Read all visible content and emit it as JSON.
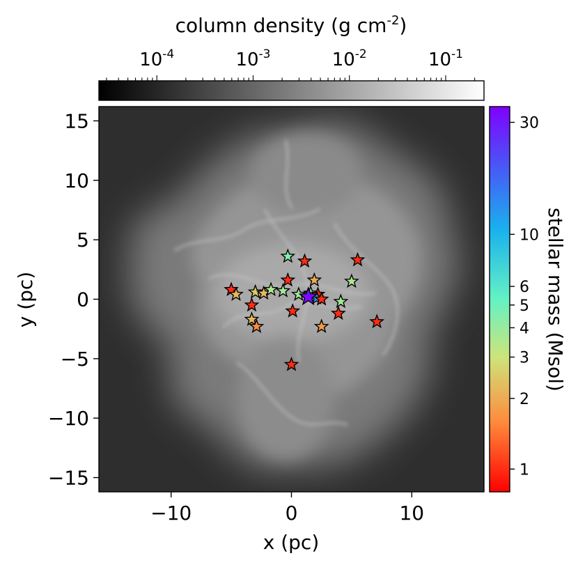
{
  "chart_data": {
    "type": "scatter",
    "xlabel": "x (pc)",
    "ylabel": "y (pc)",
    "xlim": [
      -16,
      16
    ],
    "ylim": [
      -16.2,
      16.2
    ],
    "xticks": [
      {
        "value": -10,
        "label": "−10"
      },
      {
        "value": 0,
        "label": "0"
      },
      {
        "value": 10,
        "label": "10"
      }
    ],
    "yticks": [
      {
        "value": 15,
        "label": "15"
      },
      {
        "value": 10,
        "label": "10"
      },
      {
        "value": 5,
        "label": "5"
      },
      {
        "value": 0,
        "label": "0"
      },
      {
        "value": -5,
        "label": "−5"
      },
      {
        "value": -10,
        "label": "−10"
      },
      {
        "value": -15,
        "label": "−15"
      }
    ],
    "background": {
      "quantity": "column density",
      "colormap": "gray",
      "outer_color": "#2d2d2d"
    },
    "density_colorbar": {
      "label": "column density (g cm",
      "label_sup": "-2",
      "label_end": ")",
      "scale": "log",
      "range": [
        2.5e-05,
        0.25
      ],
      "ticks": [
        {
          "value": 0.0001,
          "base": "10",
          "exp": "-4"
        },
        {
          "value": 0.001,
          "base": "10",
          "exp": "-3"
        },
        {
          "value": 0.01,
          "base": "10",
          "exp": "-2"
        },
        {
          "value": 0.1,
          "base": "10",
          "exp": "-1"
        }
      ]
    },
    "mass_colorbar": {
      "label": "stellar mass (Msol)",
      "scale": "log",
      "range": [
        0.8,
        35
      ],
      "colormap": "rainbow",
      "ticks": [
        {
          "value": 1,
          "label": "1"
        },
        {
          "value": 2,
          "label": "2"
        },
        {
          "value": 3,
          "label": "3"
        },
        {
          "value": 4,
          "label": "4"
        },
        {
          "value": 5,
          "label": "5"
        },
        {
          "value": 6,
          "label": "6"
        },
        {
          "value": 10,
          "label": "10"
        },
        {
          "value": 30,
          "label": "30"
        }
      ]
    },
    "stars": [
      {
        "x": -0.3,
        "y": 3.6,
        "mass": 4.5
      },
      {
        "x": 1.1,
        "y": 3.2,
        "mass": 1.0
      },
      {
        "x": 5.5,
        "y": 3.3,
        "mass": 1.0
      },
      {
        "x": 5.0,
        "y": 1.5,
        "mass": 3.6
      },
      {
        "x": 1.9,
        "y": 1.6,
        "mass": 2.0
      },
      {
        "x": -0.3,
        "y": 1.6,
        "mass": 1.0
      },
      {
        "x": -5.0,
        "y": 0.8,
        "mass": 1.0
      },
      {
        "x": -4.6,
        "y": 0.4,
        "mass": 2.2
      },
      {
        "x": -3.0,
        "y": 0.6,
        "mass": 2.5
      },
      {
        "x": -2.3,
        "y": 0.5,
        "mass": 2.2
      },
      {
        "x": -1.7,
        "y": 0.8,
        "mass": 3.5
      },
      {
        "x": -0.7,
        "y": 0.7,
        "mass": 3.8
      },
      {
        "x": 0.6,
        "y": 0.4,
        "mass": 3.8
      },
      {
        "x": 1.6,
        "y": 0.5,
        "mass": 4.5
      },
      {
        "x": 2.2,
        "y": 0.4,
        "mass": 1.0
      },
      {
        "x": 2.1,
        "y": 0.1,
        "mass": 12.0
      },
      {
        "x": 2.5,
        "y": 0.0,
        "mass": 1.0
      },
      {
        "x": 1.4,
        "y": 0.2,
        "mass": 32.0
      },
      {
        "x": 4.1,
        "y": -0.2,
        "mass": 3.8
      },
      {
        "x": -3.3,
        "y": -0.5,
        "mass": 1.0
      },
      {
        "x": 0.1,
        "y": -1.0,
        "mass": 1.0
      },
      {
        "x": 3.9,
        "y": -1.2,
        "mass": 1.0
      },
      {
        "x": 7.1,
        "y": -1.9,
        "mass": 1.0
      },
      {
        "x": -3.3,
        "y": -1.7,
        "mass": 2.2
      },
      {
        "x": -2.9,
        "y": -2.3,
        "mass": 1.6
      },
      {
        "x": 2.5,
        "y": -2.3,
        "mass": 1.8
      },
      {
        "x": 0.0,
        "y": -5.5,
        "mass": 1.0
      }
    ]
  }
}
